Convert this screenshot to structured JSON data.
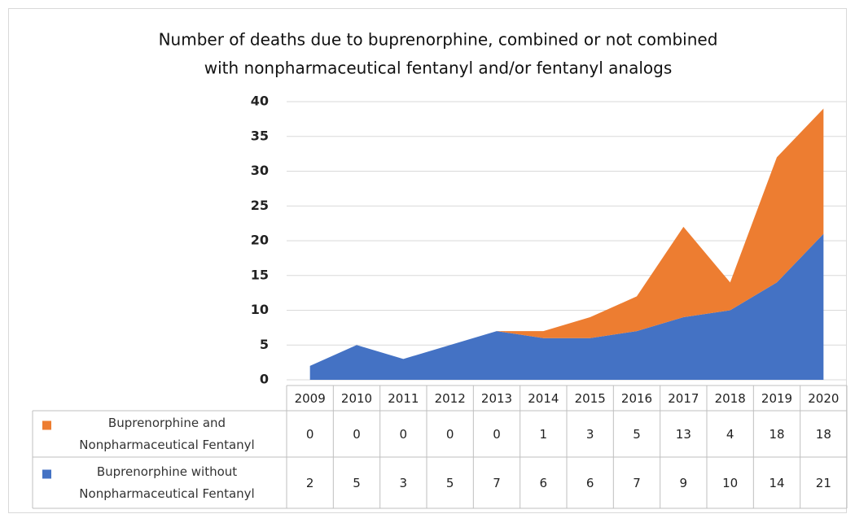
{
  "chart_data": {
    "type": "stacked_area",
    "title": [
      "Number of deaths due to buprenorphine,  combined or not combined",
      "with nonpharmaceutical  fentanyl and/or fentanyl analogs"
    ],
    "categories": [
      "2009",
      "2010",
      "2011",
      "2012",
      "2013",
      "2014",
      "2015",
      "2016",
      "2017",
      "2018",
      "2019",
      "2020"
    ],
    "series": [
      {
        "name": "Buprenorphine and Nonpharmaceutical Fentanyl",
        "color": "#ed7d31",
        "values": [
          0,
          0,
          0,
          0,
          0,
          1,
          3,
          5,
          13,
          4,
          18,
          18
        ]
      },
      {
        "name": "Buprenorphine without Nonpharmaceutical Fentanyl",
        "color": "#4472c4",
        "values": [
          2,
          5,
          3,
          5,
          7,
          6,
          6,
          7,
          9,
          10,
          14,
          21
        ]
      }
    ],
    "ylim": [
      0,
      40
    ],
    "yticks": [
      0,
      5,
      10,
      15,
      20,
      25,
      30,
      35,
      40
    ],
    "grid": true,
    "data_table": true
  }
}
